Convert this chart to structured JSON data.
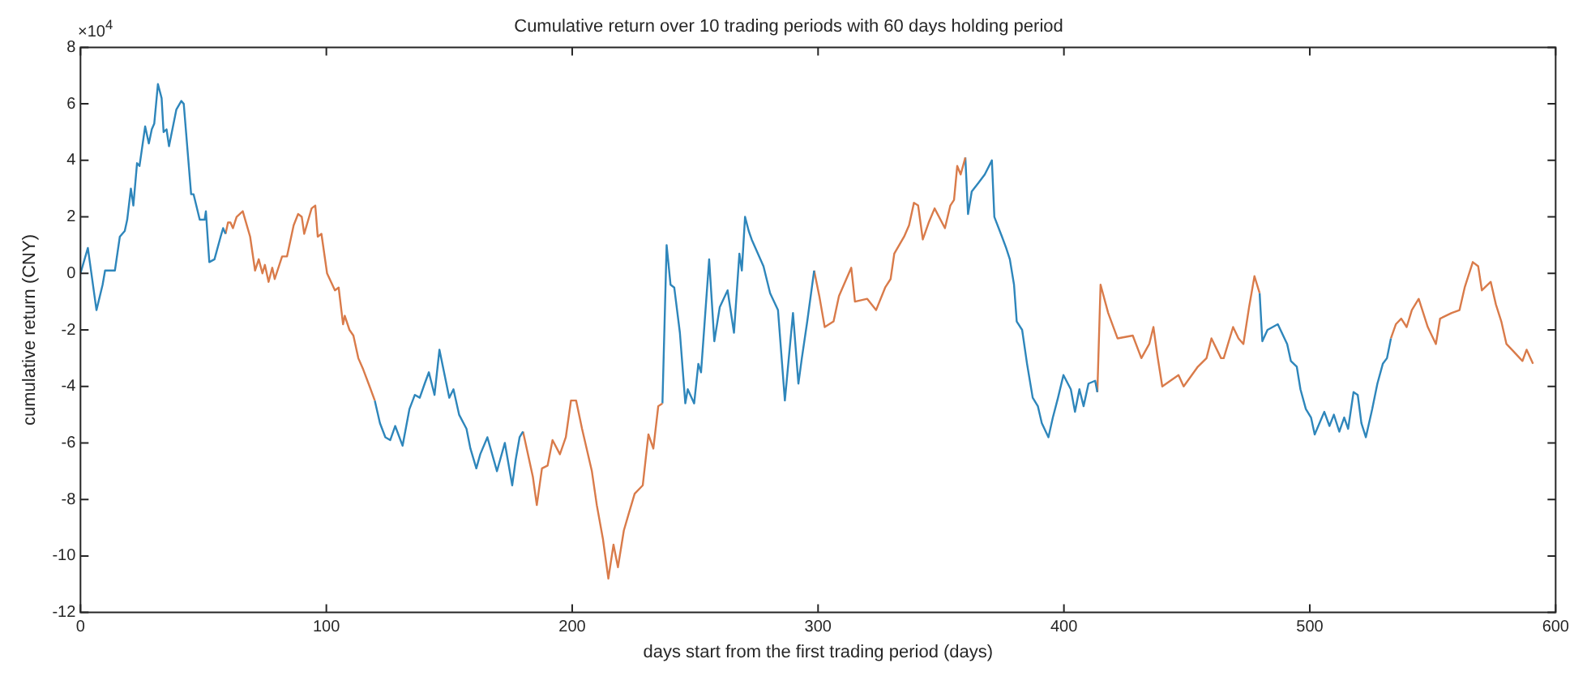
{
  "chart_data": {
    "type": "line",
    "title": "Cumulative return over 10 trading periods with 60 days holding period",
    "xlabel": "days start from the first trading period (days)",
    "ylabel": "cumulative return (CNY)",
    "annotations": [
      "×10$^{4}$"
    ],
    "xlim": [
      0,
      600
    ],
    "xticks": [
      0,
      100,
      200,
      300,
      400,
      500,
      600
    ],
    "ylim": [
      -12,
      8
    ],
    "yticks": [
      -12,
      -10,
      -8,
      -6,
      -4,
      -2,
      0,
      2,
      4,
      6,
      8
    ],
    "grid": false,
    "legend": false,
    "marker": "none",
    "series": [
      {
        "color": "#2e86bb",
        "x": [
          0,
          3,
          6.5,
          9,
          10,
          14,
          16,
          18,
          19,
          20.5,
          21.5,
          23,
          24,
          26.3,
          27.8,
          29,
          30,
          31.5,
          33,
          33.8,
          35,
          36,
          39,
          41,
          42,
          45,
          46,
          48.5,
          50.5,
          51,
          52.4,
          54.5,
          57,
          58,
          59
        ],
        "values": [
          0,
          0.9,
          -1.3,
          -0.4,
          0.1,
          0.1,
          1.3,
          1.5,
          1.9,
          3.0,
          2.4,
          3.9,
          3.8,
          5.2,
          4.6,
          5.1,
          5.3,
          6.7,
          6.2,
          5.0,
          5.1,
          4.5,
          5.8,
          6.1,
          6.0,
          2.8,
          2.8,
          1.9,
          1.9,
          2.2,
          0.4,
          0.5,
          1.3,
          1.6,
          1.4
        ]
      },
      {
        "color": "#d97b4a",
        "x": [
          59,
          60,
          61,
          62,
          63.5,
          66,
          67,
          69,
          71,
          72.5,
          74,
          75,
          76.5,
          78,
          79,
          82,
          84,
          86.7,
          88.5,
          90,
          91,
          94,
          95.5,
          96.5,
          98,
          100.3,
          103.5,
          105,
          106.8,
          107.5,
          109.4,
          111,
          113,
          115,
          117.6,
          119.7
        ],
        "values": [
          1.4,
          1.8,
          1.8,
          1.6,
          2.0,
          2.2,
          1.9,
          1.3,
          0.1,
          0.5,
          0,
          0.3,
          -0.3,
          0.2,
          -0.2,
          0.6,
          0.6,
          1.7,
          2.1,
          2.0,
          1.4,
          2.3,
          2.4,
          1.3,
          1.4,
          0,
          -0.6,
          -0.5,
          -1.8,
          -1.5,
          -2.0,
          -2.2,
          -3.0,
          -3.4,
          -4.0,
          -4.5
        ]
      },
      {
        "color": "#2e86bb",
        "x": [
          119.7,
          121.8,
          124,
          126,
          128,
          131,
          133.8,
          136,
          138,
          140,
          141.7,
          144,
          146,
          150,
          151.7,
          154,
          157,
          158.6,
          161,
          162.6,
          165.5,
          169.4,
          172.6,
          175.6,
          177,
          178.6,
          180
        ],
        "values": [
          -4.5,
          -5.3,
          -5.8,
          -5.9,
          -5.4,
          -6.1,
          -4.8,
          -4.3,
          -4.4,
          -3.9,
          -3.5,
          -4.3,
          -2.7,
          -4.4,
          -4.1,
          -5.0,
          -5.5,
          -6.2,
          -6.9,
          -6.4,
          -5.8,
          -7.0,
          -6.0,
          -7.5,
          -6.6,
          -5.8,
          -5.6
        ]
      },
      {
        "color": "#d97b4a",
        "x": [
          180,
          184,
          185.6,
          187.7,
          190,
          192,
          195,
          197.4,
          199.5,
          201.6,
          204,
          208,
          210,
          212.5,
          214.7,
          216.8,
          218.6,
          221,
          223,
          225.4,
          228.7,
          231,
          233,
          235,
          236.7
        ],
        "values": [
          -5.6,
          -7.2,
          -8.2,
          -6.9,
          -6.8,
          -5.9,
          -6.4,
          -5.8,
          -4.5,
          -4.5,
          -5.5,
          -7.0,
          -8.2,
          -9.4,
          -10.8,
          -9.6,
          -10.4,
          -9.1,
          -8.5,
          -7.8,
          -7.5,
          -5.7,
          -6.2,
          -4.7,
          -4.6
        ]
      },
      {
        "color": "#2e86bb",
        "x": [
          236.7,
          238.4,
          240,
          241.5,
          243.8,
          246,
          247,
          249.6,
          251.3,
          252.4,
          255.7,
          257.8,
          260,
          263.2,
          265.8,
          268,
          269,
          270.3,
          271.8,
          273,
          277.8,
          280.5,
          283.7,
          286.5,
          289.8,
          292,
          293.4,
          295.6,
          298.4
        ],
        "values": [
          -4.6,
          1.0,
          -0.4,
          -0.5,
          -2.1,
          -4.6,
          -4.1,
          -4.6,
          -3.2,
          -3.5,
          0.5,
          -2.4,
          -1.2,
          -0.6,
          -2.1,
          0.7,
          0.1,
          2.0,
          1.5,
          1.2,
          0.25,
          -0.7,
          -1.3,
          -4.5,
          -1.4,
          -3.9,
          -3.0,
          -1.7,
          0.1
        ]
      },
      {
        "color": "#d97b4a",
        "x": [
          298.4,
          300.5,
          302.7,
          306.3,
          308.5,
          313.5,
          315,
          320,
          323.6,
          327.3,
          329.5,
          331,
          333,
          335,
          337,
          339,
          340.7,
          342.6,
          345,
          347.4,
          351.6,
          353.8,
          355.3,
          356.6,
          358,
          359.9
        ],
        "values": [
          0.1,
          -0.8,
          -1.9,
          -1.7,
          -0.8,
          0.2,
          -1.0,
          -0.9,
          -1.3,
          -0.5,
          -0.2,
          0.7,
          1.0,
          1.3,
          1.7,
          2.5,
          2.4,
          1.2,
          1.8,
          2.3,
          1.6,
          2.4,
          2.6,
          3.8,
          3.5,
          4.1
        ]
      },
      {
        "color": "#2e86bb",
        "x": [
          359.9,
          361,
          362.5,
          365.2,
          367.8,
          370.7,
          371.7,
          374.8,
          376.5,
          378,
          379.7,
          380.8,
          383,
          385,
          387.3,
          389.4,
          391,
          393.7,
          395.5,
          397.6,
          399.8,
          402.8,
          404.5,
          406.3,
          408,
          410,
          412.7,
          413.6
        ],
        "values": [
          4.1,
          2.1,
          2.9,
          3.2,
          3.5,
          4.0,
          2.0,
          1.3,
          0.9,
          0.5,
          -0.4,
          -1.7,
          -2.0,
          -3.2,
          -4.4,
          -4.7,
          -5.3,
          -5.8,
          -5.1,
          -4.4,
          -3.6,
          -4.1,
          -4.9,
          -4.1,
          -4.7,
          -3.9,
          -3.8,
          -4.2
        ]
      },
      {
        "color": "#d97b4a",
        "x": [
          413.6,
          414.9,
          418,
          421.8,
          428,
          431.5,
          434.7,
          436.4,
          438,
          440,
          446.6,
          448.7,
          454.5,
          458,
          460,
          463.9,
          465,
          468.8,
          471,
          473,
          475.3,
          477.5,
          479.6
        ],
        "values": [
          -4.2,
          -0.4,
          -1.4,
          -2.3,
          -2.2,
          -3.0,
          -2.5,
          -1.9,
          -2.9,
          -4.0,
          -3.6,
          -4.0,
          -3.3,
          -3.0,
          -2.3,
          -3.0,
          -3.0,
          -1.9,
          -2.3,
          -2.5,
          -1.2,
          -0.1,
          -0.7
        ]
      },
      {
        "color": "#2e86bb",
        "x": [
          479.6,
          480.7,
          482.8,
          487,
          490.8,
          492.3,
          494.7,
          496.2,
          498.4,
          500.5,
          502,
          505.9,
          508,
          509.8,
          512,
          514,
          515.6,
          517.8,
          519.5,
          521,
          522.8,
          525.4,
          527.5,
          529.7,
          531.4,
          533
        ],
        "values": [
          -0.7,
          -2.4,
          -2.0,
          -1.8,
          -2.5,
          -3.1,
          -3.3,
          -4.1,
          -4.8,
          -5.1,
          -5.7,
          -4.9,
          -5.4,
          -5.0,
          -5.6,
          -5.1,
          -5.5,
          -4.2,
          -4.3,
          -5.3,
          -5.8,
          -4.8,
          -3.9,
          -3.2,
          -3.0,
          -2.3
        ]
      },
      {
        "color": "#d97b4a",
        "x": [
          533,
          535,
          537.2,
          539.4,
          541.5,
          544.3,
          548,
          551.3,
          553,
          557.7,
          560.9,
          563,
          566.3,
          568.5,
          570,
          573.6,
          575.7,
          577.9,
          580,
          582.2,
          586.5,
          588.2,
          590.8
        ],
        "values": [
          -2.3,
          -1.8,
          -1.6,
          -1.9,
          -1.3,
          -0.9,
          -1.9,
          -2.5,
          -1.6,
          -1.4,
          -1.3,
          -0.5,
          0.4,
          0.25,
          -0.6,
          -0.3,
          -1.1,
          -1.7,
          -2.5,
          -2.7,
          -3.1,
          -2.7,
          -3.2
        ]
      }
    ]
  }
}
